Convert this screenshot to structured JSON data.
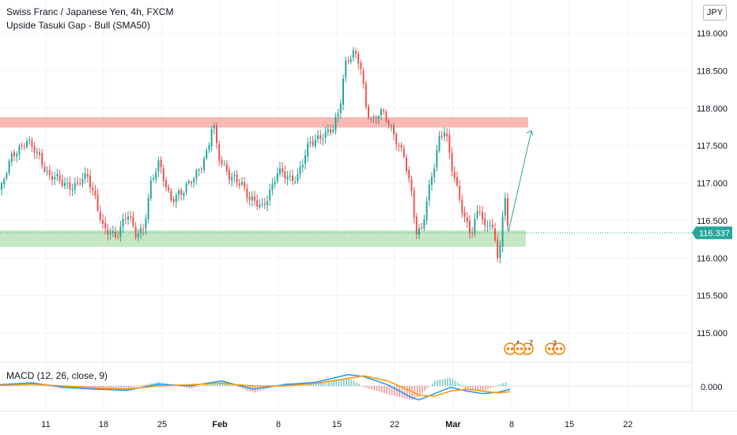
{
  "header": {
    "title": "Swiss Franc / Japanese Yen, 4h, FXCM",
    "study": "Upside Tasuki Gap - Bull (SMA50)",
    "currency": "JPY"
  },
  "macd": {
    "label": "MACD (12, 26, close, 9)",
    "axis_label": "0.000"
  },
  "price_tag": "116.337",
  "event_badges": [
    "4",
    "7",
    "3"
  ],
  "colors": {
    "up": "#26a69a",
    "down": "#ef5350",
    "resistance_zone": "#f7a19c",
    "support_zone": "#b3dfb0",
    "price_line": "#26a69a",
    "macd_line": "#2196f3",
    "signal_line": "#ff9800",
    "arrow": "#26a69a",
    "badge": "#f57c00"
  },
  "chart_data": {
    "type": "candlestick",
    "y_ticks": [
      "119.000",
      "118.500",
      "118.000",
      "117.500",
      "117.000",
      "116.500",
      "116.000",
      "115.500",
      "115.000"
    ],
    "ylim": [
      114.6,
      119.33
    ],
    "x_ticks": [
      "11",
      "18",
      "25",
      "Feb",
      "8",
      "15",
      "22",
      "Mar",
      "8",
      "15",
      "22"
    ],
    "resistance_zone": [
      117.74,
      117.88
    ],
    "support_zone": [
      116.15,
      116.37
    ],
    "last_price": 116.337,
    "projection": {
      "from": 116.35,
      "to": 117.7
    },
    "anchors": [
      [
        0,
        116.9
      ],
      [
        15,
        117.4
      ],
      [
        32,
        117.55
      ],
      [
        50,
        117.35
      ],
      [
        60,
        117.1
      ],
      [
        80,
        117.0
      ],
      [
        95,
        116.95
      ],
      [
        110,
        117.1
      ],
      [
        120,
        116.8
      ],
      [
        130,
        116.35
      ],
      [
        145,
        116.3
      ],
      [
        160,
        116.6
      ],
      [
        170,
        116.3
      ],
      [
        180,
        116.4
      ],
      [
        190,
        117.0
      ],
      [
        200,
        117.25
      ],
      [
        215,
        116.8
      ],
      [
        230,
        116.85
      ],
      [
        240,
        117.05
      ],
      [
        255,
        117.25
      ],
      [
        262,
        117.4
      ],
      [
        268,
        117.85
      ],
      [
        275,
        117.4
      ],
      [
        290,
        117.05
      ],
      [
        305,
        117.0
      ],
      [
        315,
        116.8
      ],
      [
        330,
        116.65
      ],
      [
        340,
        116.9
      ],
      [
        350,
        117.15
      ],
      [
        365,
        117.05
      ],
      [
        375,
        117.1
      ],
      [
        390,
        117.5
      ],
      [
        405,
        117.65
      ],
      [
        420,
        117.7
      ],
      [
        428,
        117.95
      ],
      [
        435,
        118.6
      ],
      [
        445,
        118.75
      ],
      [
        455,
        118.55
      ],
      [
        462,
        118.0
      ],
      [
        470,
        117.85
      ],
      [
        480,
        117.95
      ],
      [
        490,
        117.8
      ],
      [
        500,
        117.6
      ],
      [
        510,
        117.35
      ],
      [
        520,
        116.8
      ],
      [
        525,
        116.35
      ],
      [
        532,
        116.4
      ],
      [
        540,
        116.85
      ],
      [
        548,
        117.2
      ],
      [
        555,
        117.6
      ],
      [
        562,
        117.75
      ],
      [
        570,
        117.25
      ],
      [
        578,
        116.85
      ],
      [
        585,
        116.55
      ],
      [
        595,
        116.35
      ],
      [
        605,
        116.7
      ],
      [
        612,
        116.35
      ],
      [
        620,
        116.5
      ],
      [
        628,
        116.05
      ],
      [
        633,
        116.3
      ],
      [
        637,
        116.85
      ],
      [
        642,
        116.35
      ]
    ],
    "macd_ylim": [
      -0.25,
      0.25
    ],
    "macd": [
      [
        0,
        0.02
      ],
      [
        40,
        0.05
      ],
      [
        80,
        -0.02
      ],
      [
        120,
        -0.05
      ],
      [
        160,
        -0.07
      ],
      [
        200,
        0.03
      ],
      [
        240,
        0.0
      ],
      [
        280,
        0.08
      ],
      [
        320,
        -0.05
      ],
      [
        360,
        0.02
      ],
      [
        400,
        0.06
      ],
      [
        440,
        0.18
      ],
      [
        460,
        0.15
      ],
      [
        490,
        0.02
      ],
      [
        520,
        -0.18
      ],
      [
        530,
        -0.22
      ],
      [
        550,
        -0.12
      ],
      [
        570,
        -0.02
      ],
      [
        590,
        -0.08
      ],
      [
        610,
        -0.12
      ],
      [
        630,
        -0.1
      ],
      [
        645,
        -0.05
      ]
    ],
    "signal": [
      [
        0,
        0.01
      ],
      [
        40,
        0.03
      ],
      [
        80,
        0.0
      ],
      [
        120,
        -0.03
      ],
      [
        160,
        -0.05
      ],
      [
        200,
        0.0
      ],
      [
        240,
        0.02
      ],
      [
        280,
        0.04
      ],
      [
        320,
        0.0
      ],
      [
        360,
        0.0
      ],
      [
        400,
        0.04
      ],
      [
        440,
        0.12
      ],
      [
        460,
        0.16
      ],
      [
        490,
        0.08
      ],
      [
        520,
        -0.08
      ],
      [
        530,
        -0.15
      ],
      [
        550,
        -0.16
      ],
      [
        570,
        -0.08
      ],
      [
        590,
        -0.05
      ],
      [
        610,
        -0.08
      ],
      [
        630,
        -0.11
      ],
      [
        645,
        -0.09
      ]
    ]
  }
}
